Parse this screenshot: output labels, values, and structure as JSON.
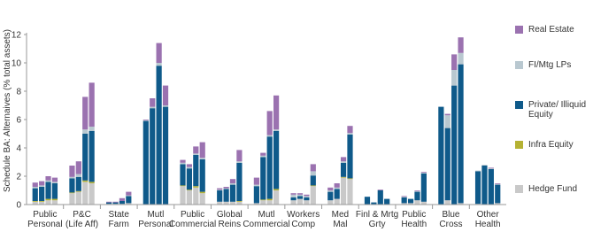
{
  "chart_data": {
    "type": "grouped-stacked-bar",
    "y_label": "Schedule BA: Alternaives (% total assets)",
    "categories": [
      [
        "Public",
        "Personal"
      ],
      [
        "P&C",
        "(Life Aff)"
      ],
      [
        "State",
        "Farm"
      ],
      [
        "Mutl",
        "Personal"
      ],
      [
        "Public",
        "Commercial"
      ],
      [
        "Global",
        "Reins"
      ],
      [
        "Mutl",
        "Commercial"
      ],
      [
        "Workers",
        "Comp"
      ],
      [
        "Med",
        "Mal"
      ],
      [
        "Finl & Mrtg",
        "Grty"
      ],
      [
        "Public",
        "Health"
      ],
      [
        "Blue",
        "Cross"
      ],
      [
        "Other",
        "Health"
      ]
    ],
    "series": [
      {
        "name": "Hedge Fund",
        "color": "#c9c9c9",
        "values": [
          [
            0.2,
            0.2,
            0.3,
            0.3
          ],
          [
            0.8,
            0.9,
            1.6,
            1.5
          ],
          [
            0.05,
            0.05,
            0.05,
            0.1
          ],
          [
            0,
            0,
            0,
            0
          ],
          [
            1.3,
            1.0,
            1.2,
            0.8
          ],
          [
            0.2,
            0.2,
            0.2,
            0.2
          ],
          [
            0.1,
            0.3,
            0.3,
            1.0
          ],
          [
            0.3,
            0.4,
            0.3,
            1.3
          ],
          [
            0.3,
            0.4,
            1.9,
            1.8
          ],
          [
            0,
            0,
            0,
            0
          ],
          [
            0.1,
            0.1,
            0.3,
            0.2
          ],
          [
            0,
            0.3,
            0,
            0.1
          ],
          [
            0.05,
            0,
            0,
            0.1
          ]
        ]
      },
      {
        "name": "Infra Equity",
        "color": "#b5b233",
        "values": [
          [
            0.05,
            0.05,
            0.1,
            0.1
          ],
          [
            0.05,
            0.05,
            0.1,
            0.1
          ],
          [
            0,
            0,
            0,
            0
          ],
          [
            0,
            0,
            0,
            0
          ],
          [
            0.05,
            0.05,
            0.1,
            0.1
          ],
          [
            0,
            0,
            0,
            0.05
          ],
          [
            0,
            0.05,
            0.1,
            0.1
          ],
          [
            0,
            0,
            0,
            0.05
          ],
          [
            0,
            0,
            0.05,
            0.05
          ],
          [
            0,
            0,
            0,
            0
          ],
          [
            0,
            0,
            0,
            0
          ],
          [
            0,
            0,
            0,
            0
          ],
          [
            0,
            0,
            0,
            0
          ]
        ]
      },
      {
        "name": "Private/ Illiquid Equity",
        "color": "#0f5a8a",
        "values": [
          [
            0.9,
            1.0,
            1.2,
            1.1
          ],
          [
            1.0,
            1.0,
            3.3,
            3.6
          ],
          [
            0.1,
            0.1,
            0.2,
            0.5
          ],
          [
            5.9,
            6.8,
            9.8,
            6.9
          ],
          [
            1.5,
            1.5,
            2.2,
            2.3
          ],
          [
            0.8,
            0.9,
            1.2,
            2.7
          ],
          [
            1.2,
            3.0,
            4.4,
            4.1
          ],
          [
            0.2,
            0.2,
            0.2,
            0.7
          ],
          [
            0.6,
            0.7,
            1.0,
            3.1
          ],
          [
            0.55,
            0.15,
            1.0,
            0.4
          ],
          [
            0.4,
            0.3,
            0.6,
            2.0
          ],
          [
            6.9,
            5.1,
            8.4,
            9.8
          ],
          [
            2.3,
            2.75,
            2.5,
            1.3
          ]
        ]
      },
      {
        "name": "FI/Mtg LPs",
        "color": "#b9c8d0",
        "values": [
          [
            0.1,
            0.1,
            0.1,
            0.1
          ],
          [
            0.1,
            0.2,
            0.3,
            0.3
          ],
          [
            0,
            0,
            0,
            0.05
          ],
          [
            0.05,
            0.1,
            0.2,
            0.1
          ],
          [
            0.1,
            0.1,
            0.1,
            0.1
          ],
          [
            0.05,
            0.05,
            0.1,
            0.1
          ],
          [
            0.1,
            0.1,
            0.1,
            0.1
          ],
          [
            0.2,
            0.1,
            0.1,
            0.3
          ],
          [
            0.1,
            0.1,
            0.1,
            0.1
          ],
          [
            0,
            0,
            0,
            0
          ],
          [
            0.05,
            0,
            0.05,
            0.05
          ],
          [
            0,
            0.9,
            1.1,
            0.8
          ],
          [
            0.05,
            0.05,
            0.05,
            0.05
          ]
        ]
      },
      {
        "name": "Real Estate",
        "color": "#9b72b0",
        "values": [
          [
            0.3,
            0.3,
            0.3,
            0.3
          ],
          [
            0.8,
            0.9,
            2.3,
            3.1
          ],
          [
            0.05,
            0.05,
            0.2,
            0.25
          ],
          [
            0.05,
            0.6,
            1.4,
            1.4
          ],
          [
            0.2,
            0.2,
            0.5,
            1.1
          ],
          [
            0.1,
            0.1,
            0.3,
            0.8
          ],
          [
            0.5,
            0.2,
            1.7,
            2.4
          ],
          [
            0.1,
            0.1,
            0.1,
            0.5
          ],
          [
            0.2,
            0.3,
            0.3,
            0.5
          ],
          [
            0,
            0,
            0.05,
            0
          ],
          [
            0.05,
            0,
            0.05,
            0.05
          ],
          [
            0,
            0.1,
            1.1,
            1.1
          ],
          [
            0,
            0,
            0.05,
            0.05
          ]
        ]
      }
    ],
    "ylim": [
      0,
      12
    ],
    "yticks": [
      0,
      2,
      4,
      6,
      8,
      10,
      12
    ]
  }
}
